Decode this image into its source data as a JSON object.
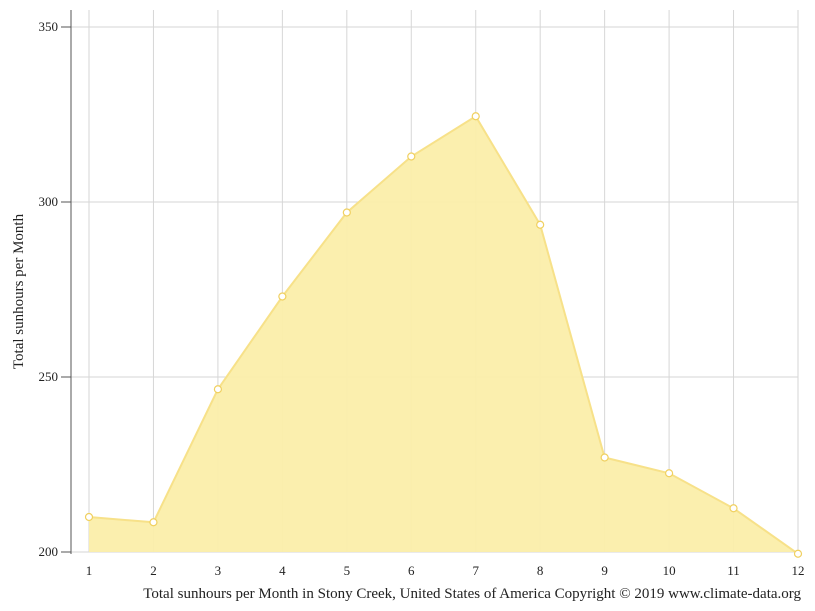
{
  "chart_data": {
    "type": "area",
    "x": [
      1,
      2,
      3,
      4,
      5,
      6,
      7,
      8,
      9,
      10,
      11,
      12
    ],
    "values": [
      210,
      208.5,
      246.5,
      273,
      297,
      313,
      324.5,
      293.5,
      227,
      222.5,
      212.5,
      199.5
    ],
    "ylabel": "Total sunhours per Month",
    "xlabel": "",
    "ylim": [
      200,
      350
    ],
    "yticks": [
      200,
      250,
      300,
      350
    ],
    "xticks": [
      1,
      2,
      3,
      4,
      5,
      6,
      7,
      8,
      9,
      10,
      11,
      12
    ],
    "grid": true,
    "fill_color": "#fbeeaa",
    "line_color": "#f7e189",
    "marker_fill": "#ffffff",
    "marker_stroke": "#f0d060"
  },
  "caption": "Total sunhours per Month in Stony Creek, United States of America Copyright © 2019 www.climate-data.org"
}
